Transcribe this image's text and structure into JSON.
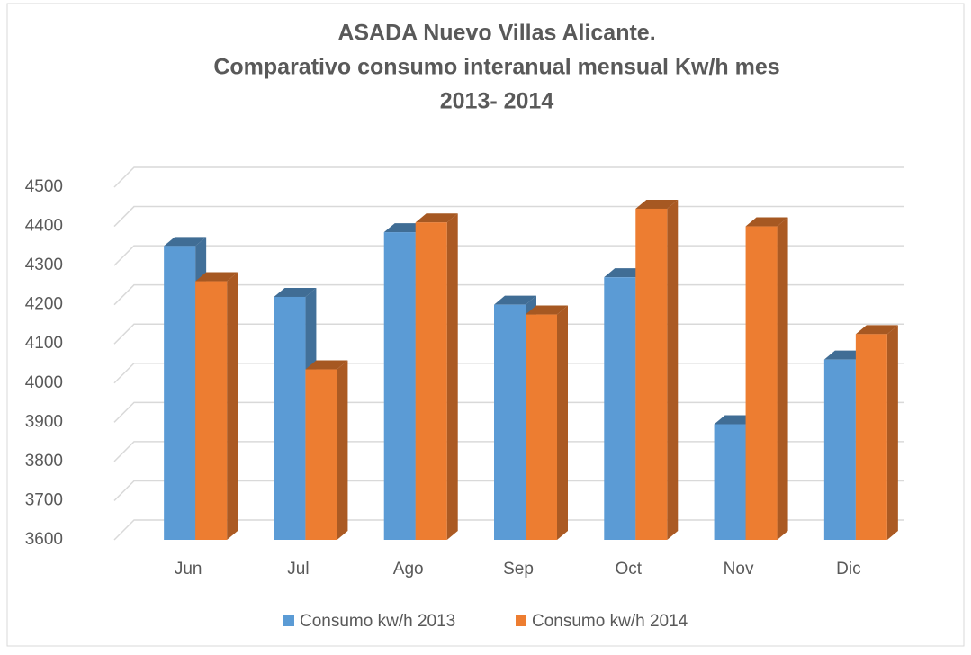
{
  "chart_data": {
    "type": "bar3d",
    "title": [
      "ASADA Nuevo Villas Alicante.",
      "Comparativo consumo interanual  mensual Kw/h mes",
      "2013- 2014"
    ],
    "categories": [
      "Jun",
      "Jul",
      "Ago",
      "Sep",
      "Oct",
      "Nov",
      "Dic"
    ],
    "series": [
      {
        "name": "Consumo kw/h 2013",
        "color": "#5b9bd5",
        "values": [
          4350,
          4220,
          4385,
          4200,
          4270,
          3895,
          4060
        ]
      },
      {
        "name": "Consumo kw/h 2014",
        "color": "#ed7d31",
        "values": [
          4260,
          4035,
          4410,
          4175,
          4445,
          4400,
          4125
        ]
      }
    ],
    "ylim": [
      3600,
      4500
    ],
    "yticks": [
      3600,
      3700,
      3800,
      3900,
      4000,
      4100,
      4200,
      4300,
      4400,
      4500
    ],
    "grid": true,
    "legend": "bottom"
  }
}
